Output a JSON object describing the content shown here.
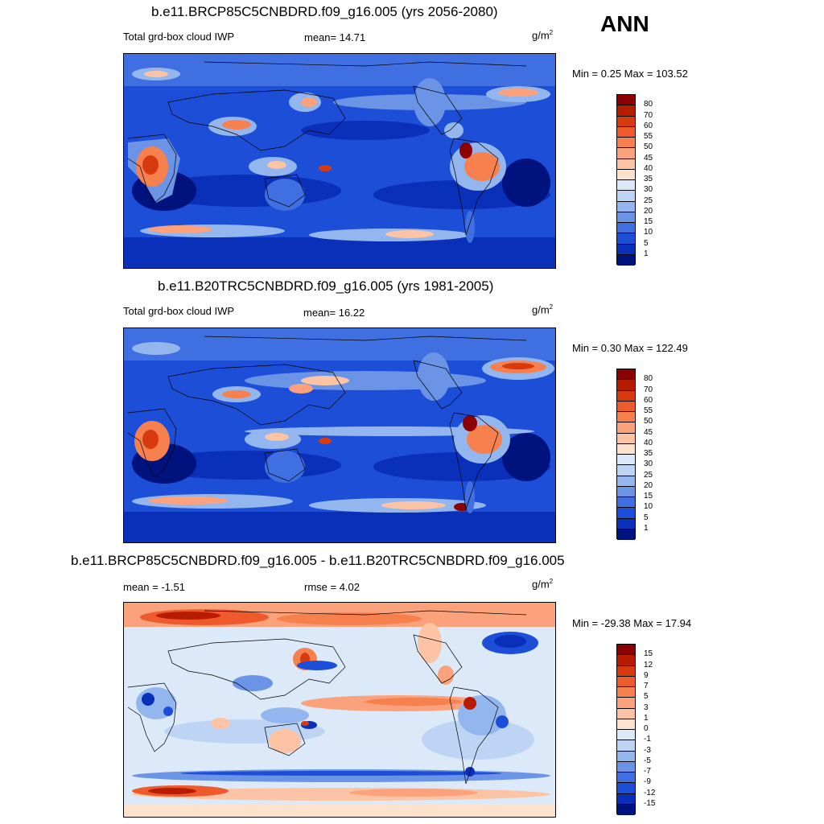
{
  "season": "ANN",
  "units_main": "g/m",
  "units_sup": "2",
  "panels": [
    {
      "title": "b.e11.BRCP85C5CNBDRD.f09_g16.005 (yrs 2056-2080)",
      "left_label": "Total grd-box cloud IWP",
      "stat1": "mean=  14.71",
      "stat2": "",
      "minmax": "Min =   0.25 Max = 103.52"
    },
    {
      "title": "b.e11.B20TRC5CNBDRD.f09_g16.005 (yrs 1981-2005)",
      "left_label": "Total grd-box cloud IWP",
      "stat1": "mean=  16.22",
      "stat2": "",
      "minmax": "Min =   0.30 Max = 122.49"
    },
    {
      "title": "b.e11.BRCP85C5CNBDRD.f09_g16.005 - b.e11.B20TRC5CNBDRD.f09_g16.005",
      "left_label": "",
      "stat1": "mean =  -1.51",
      "stat2": "rmse =   4.02",
      "minmax": "Min = -29.38 Max =  17.94"
    }
  ],
  "colorbar_abs": {
    "labels": [
      "80",
      "70",
      "60",
      "55",
      "50",
      "45",
      "40",
      "35",
      "30",
      "25",
      "20",
      "15",
      "10",
      "5",
      "1"
    ],
    "colors": [
      "#8b0000",
      "#b81c00",
      "#d83a10",
      "#ee5a2c",
      "#f7804f",
      "#fba27c",
      "#fcc4a4",
      "#fde3cd",
      "#dce9f9",
      "#bdd4f4",
      "#94b6ee",
      "#6b94e6",
      "#3f6fe0",
      "#1c4ed8",
      "#0a2fb8",
      "#00127e"
    ]
  },
  "colorbar_diff": {
    "labels": [
      "15",
      "12",
      "9",
      "7",
      "5",
      "3",
      "1",
      "0",
      "-1",
      "-3",
      "-5",
      "-7",
      "-9",
      "-12",
      "-15"
    ],
    "colors": [
      "#8b0000",
      "#b81c00",
      "#d83a10",
      "#ee5a2c",
      "#f7804f",
      "#fba27c",
      "#fcc4a4",
      "#fde3cd",
      "#dce9f9",
      "#bdd4f4",
      "#94b6ee",
      "#6b94e6",
      "#3f6fe0",
      "#1c4ed8",
      "#0a2fb8",
      "#00127e"
    ]
  }
}
